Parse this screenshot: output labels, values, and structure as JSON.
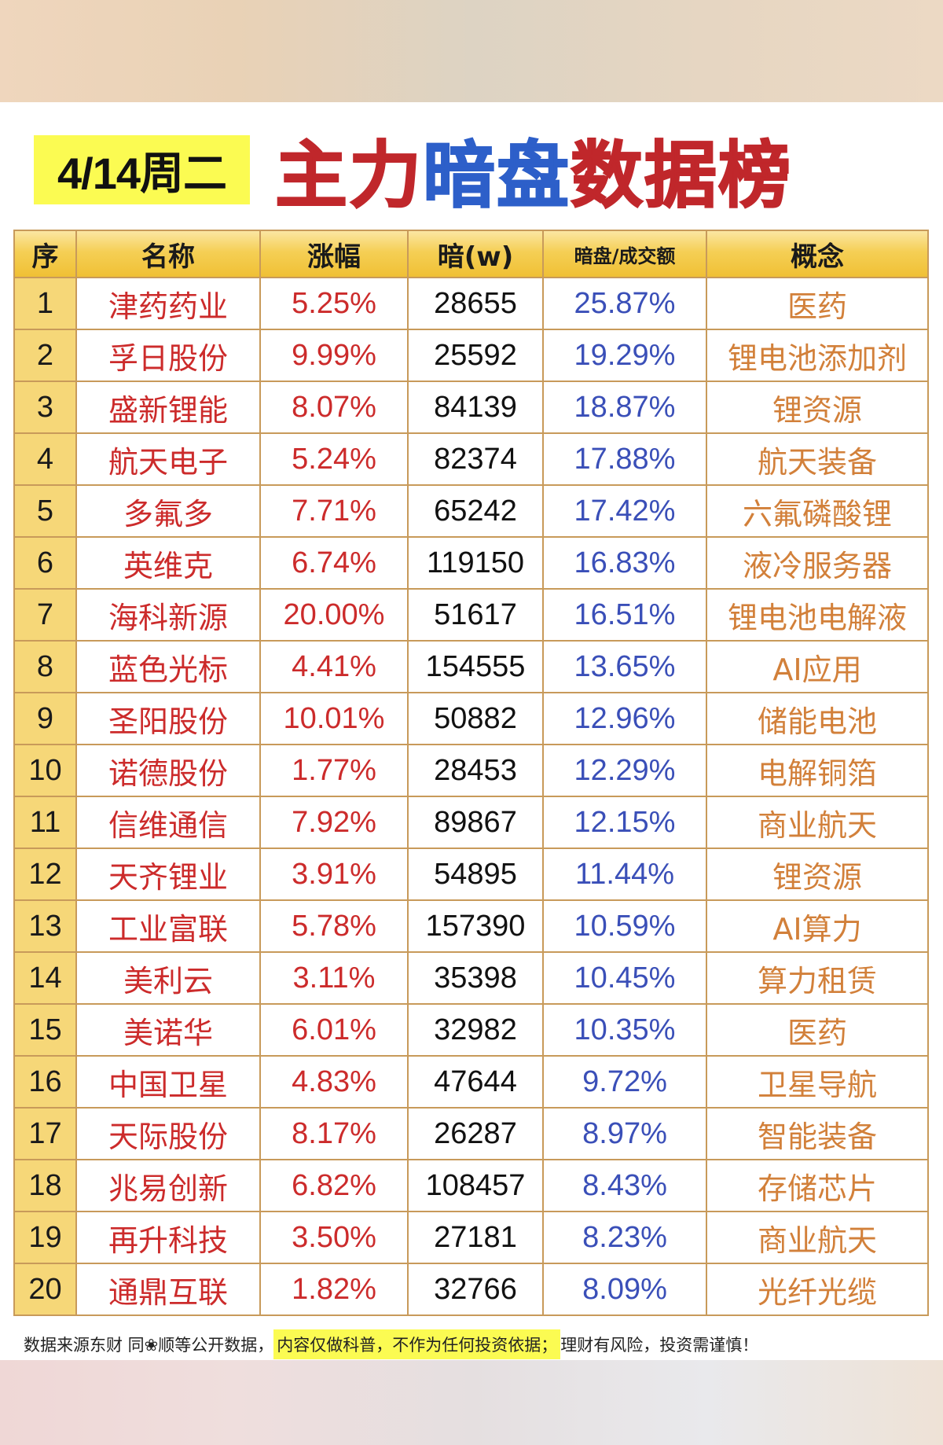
{
  "header": {
    "date_label": "4/14周二",
    "title_parts": [
      {
        "text": "主力",
        "color": "#c0272b"
      },
      {
        "text": "暗盘",
        "color": "#2d5fc9"
      },
      {
        "text": "数据榜",
        "color": "#c0272b"
      }
    ]
  },
  "table": {
    "columns": [
      "序",
      "名称",
      "涨幅",
      "暗(w)",
      "暗盘/成交额",
      "概念"
    ],
    "rows": [
      {
        "rank": "1",
        "name": "津药药业",
        "change": "5.25%",
        "dark": "28655",
        "ratio": "25.87%",
        "concept": "医药"
      },
      {
        "rank": "2",
        "name": "孚日股份",
        "change": "9.99%",
        "dark": "25592",
        "ratio": "19.29%",
        "concept": "锂电池添加剂"
      },
      {
        "rank": "3",
        "name": "盛新锂能",
        "change": "8.07%",
        "dark": "84139",
        "ratio": "18.87%",
        "concept": "锂资源"
      },
      {
        "rank": "4",
        "name": "航天电子",
        "change": "5.24%",
        "dark": "82374",
        "ratio": "17.88%",
        "concept": "航天装备"
      },
      {
        "rank": "5",
        "name": "多氟多",
        "change": "7.71%",
        "dark": "65242",
        "ratio": "17.42%",
        "concept": "六氟磷酸锂"
      },
      {
        "rank": "6",
        "name": "英维克",
        "change": "6.74%",
        "dark": "119150",
        "ratio": "16.83%",
        "concept": "液冷服务器"
      },
      {
        "rank": "7",
        "name": "海科新源",
        "change": "20.00%",
        "dark": "51617",
        "ratio": "16.51%",
        "concept": "锂电池电解液"
      },
      {
        "rank": "8",
        "name": "蓝色光标",
        "change": "4.41%",
        "dark": "154555",
        "ratio": "13.65%",
        "concept": "AI应用"
      },
      {
        "rank": "9",
        "name": "圣阳股份",
        "change": "10.01%",
        "dark": "50882",
        "ratio": "12.96%",
        "concept": "储能电池"
      },
      {
        "rank": "10",
        "name": "诺德股份",
        "change": "1.77%",
        "dark": "28453",
        "ratio": "12.29%",
        "concept": "电解铜箔"
      },
      {
        "rank": "11",
        "name": "信维通信",
        "change": "7.92%",
        "dark": "89867",
        "ratio": "12.15%",
        "concept": "商业航天"
      },
      {
        "rank": "12",
        "name": "天齐锂业",
        "change": "3.91%",
        "dark": "54895",
        "ratio": "11.44%",
        "concept": "锂资源"
      },
      {
        "rank": "13",
        "name": "工业富联",
        "change": "5.78%",
        "dark": "157390",
        "ratio": "10.59%",
        "concept": "AI算力"
      },
      {
        "rank": "14",
        "name": "美利云",
        "change": "3.11%",
        "dark": "35398",
        "ratio": "10.45%",
        "concept": "算力租赁"
      },
      {
        "rank": "15",
        "name": "美诺华",
        "change": "6.01%",
        "dark": "32982",
        "ratio": "10.35%",
        "concept": "医药"
      },
      {
        "rank": "16",
        "name": "中国卫星",
        "change": "4.83%",
        "dark": "47644",
        "ratio": "9.72%",
        "concept": "卫星导航"
      },
      {
        "rank": "17",
        "name": "天际股份",
        "change": "8.17%",
        "dark": "26287",
        "ratio": "8.97%",
        "concept": "智能装备"
      },
      {
        "rank": "18",
        "name": "兆易创新",
        "change": "6.82%",
        "dark": "108457",
        "ratio": "8.43%",
        "concept": "存储芯片"
      },
      {
        "rank": "19",
        "name": "再升科技",
        "change": "3.50%",
        "dark": "27181",
        "ratio": "8.23%",
        "concept": "商业航天"
      },
      {
        "rank": "20",
        "name": "通鼎互联",
        "change": "1.82%",
        "dark": "32766",
        "ratio": "8.09%",
        "concept": "光纤光缆"
      }
    ]
  },
  "footer": {
    "source": "数据来源东财 同❀顺等公开数据，",
    "disclaimer_highlight": "内容仅做科普，不作为任何投资依据；",
    "risk": "理财有风险，投资需谨慎！"
  },
  "colors": {
    "title_red": "#c0272b",
    "title_blue": "#2d5fc9",
    "date_highlight": "#fbfb52",
    "header_gold": "#f3c53a",
    "index_column": "#f6d778",
    "name_red": "#cc2b2b",
    "ratio_blue": "#3a4fb8",
    "concept_orange": "#d2803a",
    "grid": "#c89a5a"
  }
}
